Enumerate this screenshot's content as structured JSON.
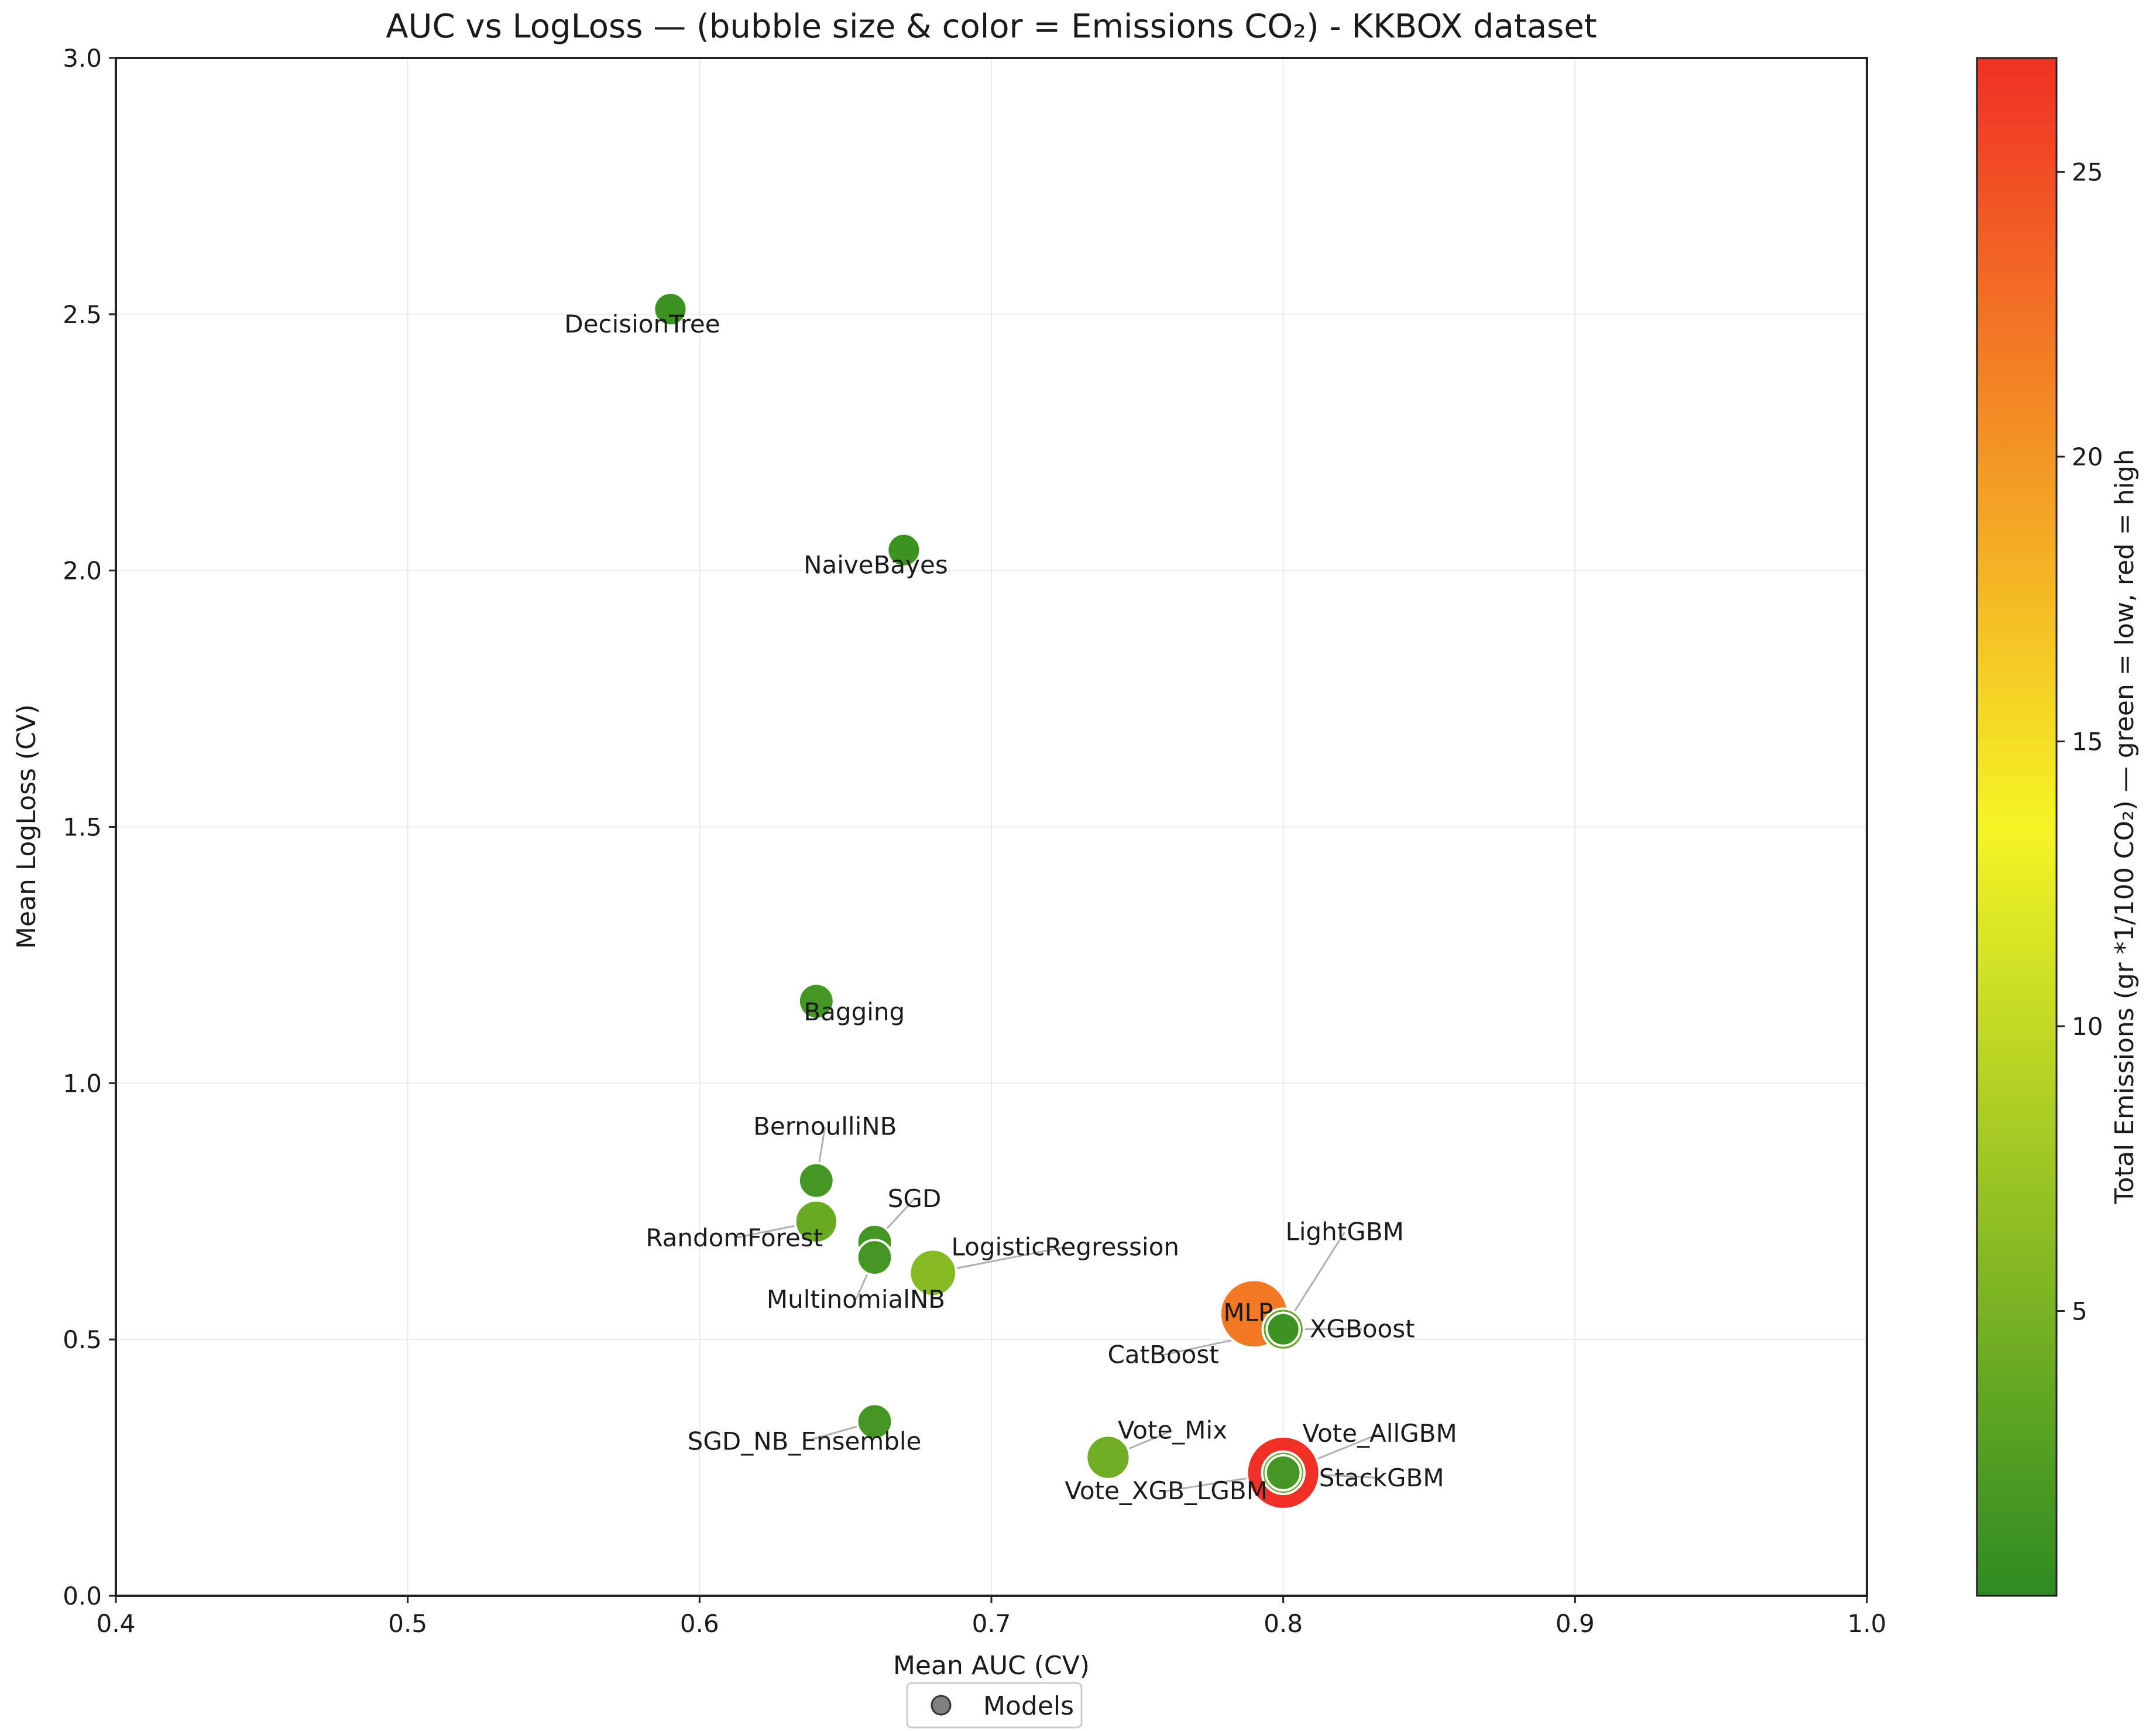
{
  "chart_data": {
    "type": "scatter",
    "title": "AUC vs LogLoss — (bubble size & color = Emissions CO₂) - KKBOX dataset",
    "xlabel": "Mean AUC (CV)",
    "ylabel": "Mean LogLoss (CV)",
    "xlim": [
      0.4,
      1.0
    ],
    "ylim": [
      0.0,
      3.0
    ],
    "xticks": [
      "0.4",
      "0.5",
      "0.6",
      "0.7",
      "0.8",
      "0.9",
      "1.0"
    ],
    "yticks": [
      "0.0",
      "0.5",
      "1.0",
      "1.5",
      "2.0",
      "2.5",
      "3.0"
    ],
    "grid": true,
    "legend": {
      "position": "bottom-center",
      "label": "Models"
    },
    "colorbar": {
      "label": "Total Emissions (gr *1/100 CO₂) — green = low, red = high",
      "range": [
        0,
        27
      ],
      "ticks": [
        "5",
        "10",
        "15",
        "20",
        "25"
      ],
      "colors": [
        "#2e8b22",
        "#f5f524",
        "#f03024"
      ]
    },
    "points": [
      {
        "name": "DecisionTree",
        "auc": 0.59,
        "logloss": 2.51,
        "emissions": 1.0
      },
      {
        "name": "NaiveBayes",
        "auc": 0.67,
        "logloss": 2.04,
        "emissions": 1.0
      },
      {
        "name": "Bagging",
        "auc": 0.64,
        "logloss": 1.16,
        "emissions": 1.5
      },
      {
        "name": "BernoulliNB",
        "auc": 0.64,
        "logloss": 0.81,
        "emissions": 1.5
      },
      {
        "name": "RandomForest",
        "auc": 0.64,
        "logloss": 0.73,
        "emissions": 4.0
      },
      {
        "name": "SGD",
        "auc": 0.66,
        "logloss": 0.69,
        "emissions": 1.5
      },
      {
        "name": "MultinomialNB",
        "auc": 0.66,
        "logloss": 0.66,
        "emissions": 1.5
      },
      {
        "name": "LogisticRegression",
        "auc": 0.68,
        "logloss": 0.63,
        "emissions": 6.0
      },
      {
        "name": "MLP",
        "auc": 0.79,
        "logloss": 0.55,
        "emissions": 22.0
      },
      {
        "name": "CatBoost",
        "auc": 0.8,
        "logloss": 0.52,
        "emissions": 3.5
      },
      {
        "name": "LightGBM",
        "auc": 0.8,
        "logloss": 0.52,
        "emissions": 1.0
      },
      {
        "name": "XGBoost",
        "auc": 0.8,
        "logloss": 0.52,
        "emissions": 1.0
      },
      {
        "name": "SGD_NB_Ensemble",
        "auc": 0.66,
        "logloss": 0.34,
        "emissions": 1.5
      },
      {
        "name": "Vote_Mix",
        "auc": 0.74,
        "logloss": 0.27,
        "emissions": 4.5
      },
      {
        "name": "StackGBM",
        "auc": 0.8,
        "logloss": 0.24,
        "emissions": 27.0
      },
      {
        "name": "Vote_AllGBM",
        "auc": 0.8,
        "logloss": 0.24,
        "emissions": 4.0
      },
      {
        "name": "Vote_XGB_LGBM",
        "auc": 0.8,
        "logloss": 0.24,
        "emissions": 1.5
      }
    ]
  }
}
